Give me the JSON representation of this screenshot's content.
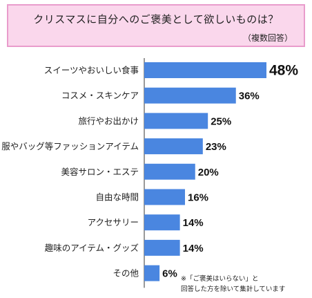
{
  "chart_data": {
    "type": "bar",
    "orientation": "horizontal",
    "title": "クリスマスに自分へのご褒美として欲しいものは？",
    "subtitle": "（複数回答）",
    "categories": [
      "スイーツやおいしい食事",
      "コスメ・スキンケア",
      "旅行やお出かけ",
      "服やバッグ等ファッションアイテム",
      "美容サロン・エステ",
      "自由な時間",
      "アクセサリー",
      "趣味のアイテム・グッズ",
      "その他"
    ],
    "values": [
      48,
      36,
      25,
      23,
      20,
      16,
      14,
      14,
      6
    ],
    "value_labels": [
      "48%",
      "36%",
      "25%",
      "23%",
      "20%",
      "16%",
      "14%",
      "14%",
      "6%"
    ],
    "xlim": [
      0,
      48
    ],
    "bar_color": "#4a86e0",
    "grid": false,
    "legend": "none"
  },
  "note": {
    "line1": "※「ご褒美はいらない」と",
    "line2": "回答した方を除いて集計しています"
  },
  "colors": {
    "title_bg": "#fad7ec",
    "title_border": "#e99ccc",
    "axis": "#333333"
  }
}
